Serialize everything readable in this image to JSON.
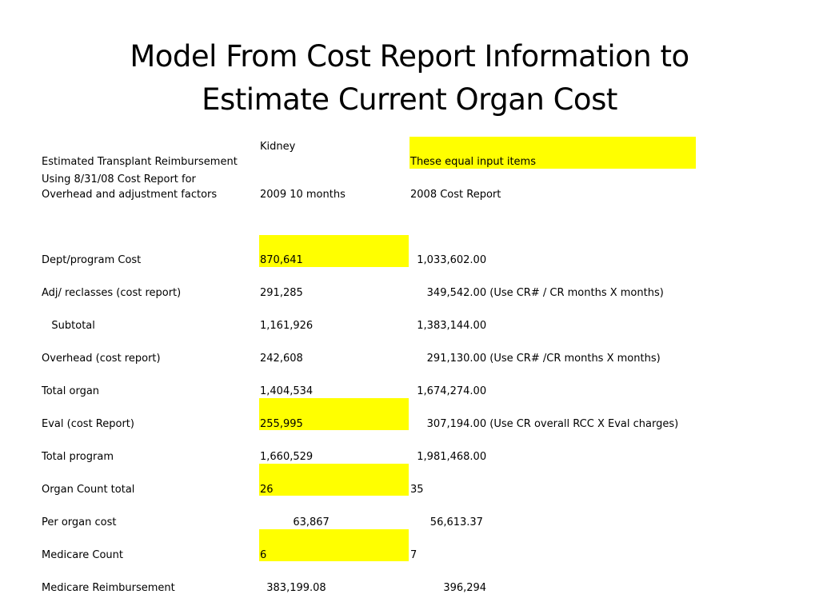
{
  "title": {
    "line1": "Model From Cost Report Information to",
    "line2": "Estimate Current Organ Cost"
  },
  "header": {
    "col_b_top": "Kidney",
    "reimbursement_label": "Estimated Transplant Reimbursement",
    "highlight_note": "These equal input items",
    "using_label_line1": "Using 8/31/08 Cost Report for",
    "using_label_line2": "Overhead and adjustment factors",
    "col_b_heading": "2009 10 months",
    "col_c_heading": "2008 Cost Report"
  },
  "rows": [
    {
      "label": "Dept/program Cost",
      "current": "870,641",
      "cost_report": "  1,033,602.00",
      "note": ""
    },
    {
      "label": "Adj/ reclasses (cost report)",
      "current": "291,285",
      "cost_report": "     349,542.00",
      "note": " (Use CR# / CR months X months)"
    },
    {
      "label": "   Subtotal",
      "current": "1,161,926",
      "cost_report": "  1,383,144.00",
      "note": ""
    },
    {
      "label": "Overhead (cost report)",
      "current": "242,608",
      "cost_report": "     291,130.00",
      "note": " (Use CR# /CR months X months)"
    },
    {
      "label": "Total organ",
      "current": "1,404,534",
      "cost_report": "  1,674,274.00",
      "note": ""
    },
    {
      "label": "Eval (cost Report)",
      "current": "255,995",
      "cost_report": "     307,194.00",
      "note": " (Use CR overall RCC X Eval charges)"
    },
    {
      "label": "Total program",
      "current": "1,660,529",
      "cost_report": "  1,981,468.00",
      "note": ""
    },
    {
      "label": "Organ Count total",
      "current": "26",
      "cost_report": "35",
      "note": ""
    },
    {
      "label": "Per organ cost",
      "current": "          63,867",
      "cost_report": "      56,613.37",
      "note": ""
    },
    {
      "label": "Medicare Count",
      "current": "6",
      "cost_report": "7",
      "note": ""
    },
    {
      "label": "Medicare Reimbursement",
      "current": "  383,199.08",
      "cost_report": "          396,294",
      "note": ""
    }
  ],
  "highlight_color": "#ffff00"
}
